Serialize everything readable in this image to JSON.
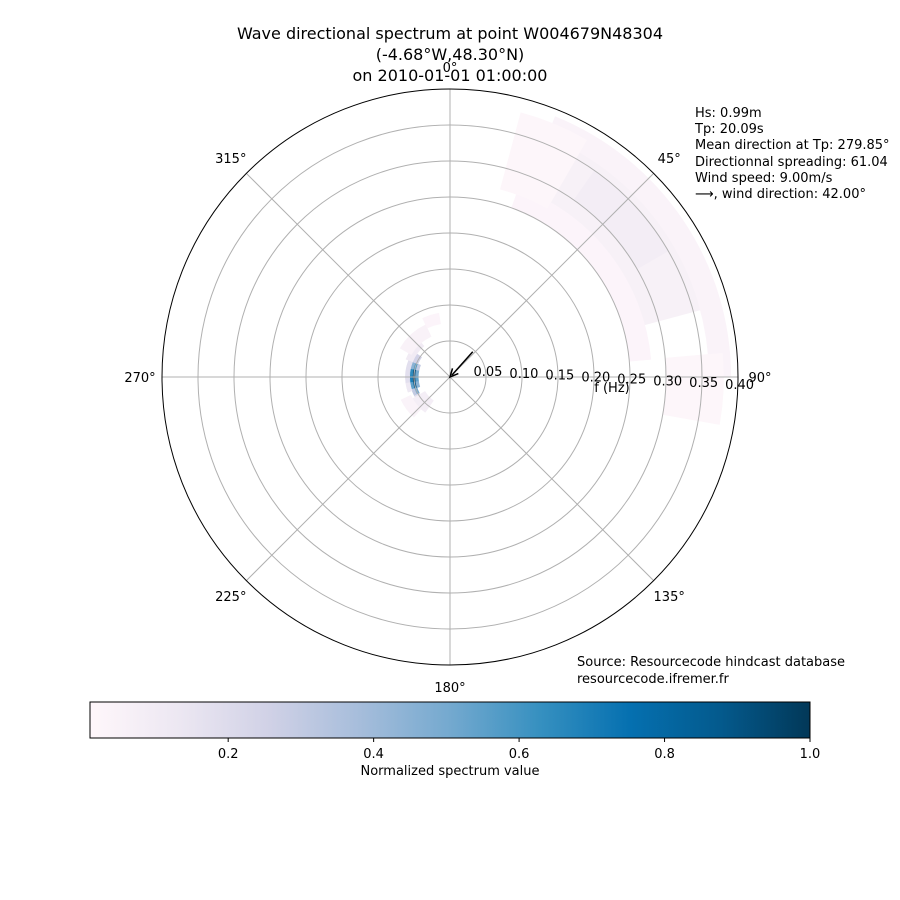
{
  "title": {
    "line1": "Wave directional spectrum at point W004679N48304",
    "line2": "(-4.68°W,48.30°N)",
    "line3": "on 2010-01-01 01:00:00"
  },
  "stats": {
    "hs": "Hs: 0.99m",
    "tp": "Tp: 20.09s",
    "mean_direction": "Mean direction at Tp: 279.85°",
    "spreading": "Directionnal spreading: 61.04",
    "wind_speed": "Wind speed: 9.00m/s",
    "wind_direction": "⟶, wind direction: 42.00°"
  },
  "source": {
    "line1": "Source: Resourcecode hindcast database",
    "line2": "resourcecode.ifremer.fr"
  },
  "colors": {
    "axis_line": "#000000",
    "grid": "#b0b0b0",
    "colormap": [
      "#fff7fb",
      "#ece7f2",
      "#d0d1e6",
      "#a6bddb",
      "#74a9cf",
      "#3690c0",
      "#0570b0",
      "#045a8d",
      "#023858"
    ]
  },
  "chart_data": {
    "type": "heatmap",
    "projection": "polar",
    "theta_zero": "north",
    "theta_direction": "clockwise",
    "rlabel": "f (Hz)",
    "rlim": [
      0,
      0.4
    ],
    "r_ticks": [
      "0.05",
      "0.10",
      "0.15",
      "0.20",
      "0.25",
      "0.30",
      "0.35",
      "0.40"
    ],
    "r_tick_values": [
      0.05,
      0.1,
      0.15,
      0.2,
      0.25,
      0.3,
      0.35,
      0.4
    ],
    "theta_ticks": [
      "0°",
      "45°",
      "90°",
      "135°",
      "180°",
      "225°",
      "270°",
      "315°"
    ],
    "theta_tick_values": [
      0,
      45,
      90,
      135,
      180,
      225,
      270,
      315
    ],
    "grid": true,
    "colorbar": {
      "label": "Normalized spectrum value",
      "range": [
        0.01,
        1.0
      ],
      "ticks": [
        "0.2",
        "0.4",
        "0.6",
        "0.8",
        "1.0"
      ],
      "tick_values": [
        0.2,
        0.4,
        0.6,
        0.8,
        1.0
      ],
      "colormap": "PuBu"
    },
    "wind_arrow": {
      "direction_deg": 42.0,
      "speed": 9.0
    },
    "spectrum_cells": [
      {
        "theta": [
          262,
          272
        ],
        "f": [
          0.048,
          0.052
        ],
        "value": 1.0
      },
      {
        "theta": [
          272,
          282
        ],
        "f": [
          0.048,
          0.052
        ],
        "value": 0.95
      },
      {
        "theta": [
          252,
          262
        ],
        "f": [
          0.048,
          0.052
        ],
        "value": 0.9
      },
      {
        "theta": [
          282,
          292
        ],
        "f": [
          0.048,
          0.052
        ],
        "value": 0.6
      },
      {
        "theta": [
          242,
          252
        ],
        "f": [
          0.048,
          0.052
        ],
        "value": 0.5
      },
      {
        "theta": [
          262,
          272
        ],
        "f": [
          0.052,
          0.056
        ],
        "value": 0.7
      },
      {
        "theta": [
          272,
          282
        ],
        "f": [
          0.052,
          0.056
        ],
        "value": 0.65
      },
      {
        "theta": [
          252,
          262
        ],
        "f": [
          0.052,
          0.056
        ],
        "value": 0.55
      },
      {
        "theta": [
          282,
          292
        ],
        "f": [
          0.052,
          0.056
        ],
        "value": 0.45
      },
      {
        "theta": [
          242,
          252
        ],
        "f": [
          0.052,
          0.056
        ],
        "value": 0.3
      },
      {
        "theta": [
          262,
          272
        ],
        "f": [
          0.044,
          0.048
        ],
        "value": 0.55
      },
      {
        "theta": [
          272,
          282
        ],
        "f": [
          0.044,
          0.048
        ],
        "value": 0.5
      },
      {
        "theta": [
          252,
          262
        ],
        "f": [
          0.044,
          0.048
        ],
        "value": 0.45
      },
      {
        "theta": [
          282,
          292
        ],
        "f": [
          0.044,
          0.048
        ],
        "value": 0.3
      },
      {
        "theta": [
          292,
          305
        ],
        "f": [
          0.048,
          0.056
        ],
        "value": 0.25
      },
      {
        "theta": [
          232,
          242
        ],
        "f": [
          0.048,
          0.056
        ],
        "value": 0.18
      },
      {
        "theta": [
          262,
          292
        ],
        "f": [
          0.056,
          0.062
        ],
        "value": 0.18
      },
      {
        "theta": [
          250,
          262
        ],
        "f": [
          0.056,
          0.062
        ],
        "value": 0.12
      },
      {
        "theta": [
          292,
          320
        ],
        "f": [
          0.056,
          0.066
        ],
        "value": 0.1
      },
      {
        "theta": [
          300,
          335
        ],
        "f": [
          0.062,
          0.08
        ],
        "value": 0.05
      },
      {
        "theta": [
          215,
          240
        ],
        "f": [
          0.04,
          0.06
        ],
        "value": 0.08
      },
      {
        "theta": [
          222,
          245
        ],
        "f": [
          0.06,
          0.075
        ],
        "value": 0.04
      },
      {
        "theta": [
          335,
          350
        ],
        "f": [
          0.075,
          0.09
        ],
        "value": 0.03
      },
      {
        "theta": [
          25,
          75
        ],
        "f": [
          0.28,
          0.36
        ],
        "value": 0.06
      },
      {
        "theta": [
          35,
          60
        ],
        "f": [
          0.3,
          0.35
        ],
        "value": 0.09
      },
      {
        "theta": [
          20,
          85
        ],
        "f": [
          0.25,
          0.28
        ],
        "value": 0.03
      },
      {
        "theta": [
          22,
          90
        ],
        "f": [
          0.36,
          0.39
        ],
        "value": 0.04
      },
      {
        "theta": [
          85,
          100
        ],
        "f": [
          0.3,
          0.38
        ],
        "value": 0.02
      },
      {
        "theta": [
          15,
          30
        ],
        "f": [
          0.27,
          0.38
        ],
        "value": 0.02
      }
    ]
  }
}
